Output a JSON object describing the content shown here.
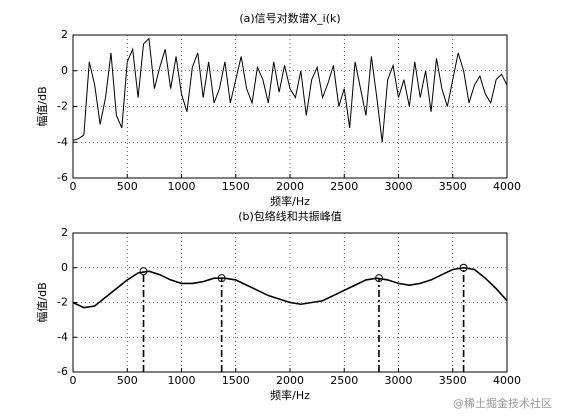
{
  "chart_data": [
    {
      "type": "line",
      "title": "(a)信号对数谱X_i(k)",
      "xlabel": "频率/Hz",
      "ylabel": "幅值/dB",
      "color": "#000000",
      "grid": true,
      "xlim": [
        0,
        4000
      ],
      "ylim": [
        -6,
        2
      ],
      "xticks": [
        0,
        500,
        1000,
        1500,
        2000,
        2500,
        3000,
        3500,
        4000
      ],
      "yticks": [
        -6,
        -4,
        -2,
        0,
        2
      ],
      "x": [
        0,
        50,
        100,
        150,
        200,
        250,
        300,
        350,
        400,
        450,
        500,
        550,
        600,
        650,
        700,
        750,
        800,
        850,
        900,
        950,
        1000,
        1050,
        1100,
        1150,
        1200,
        1250,
        1300,
        1350,
        1400,
        1450,
        1500,
        1550,
        1600,
        1650,
        1700,
        1750,
        1800,
        1850,
        1900,
        1950,
        2000,
        2050,
        2100,
        2150,
        2200,
        2250,
        2300,
        2350,
        2400,
        2450,
        2500,
        2550,
        2600,
        2650,
        2700,
        2750,
        2800,
        2850,
        2900,
        2950,
        3000,
        3050,
        3100,
        3150,
        3200,
        3250,
        3300,
        3350,
        3400,
        3450,
        3500,
        3550,
        3600,
        3650,
        3700,
        3750,
        3800,
        3850,
        3900,
        3950,
        4000
      ],
      "values": [
        -3.9,
        -3.8,
        -3.6,
        0.5,
        -0.8,
        -3.0,
        -1.5,
        1.0,
        -2.5,
        -3.2,
        0.5,
        1.2,
        -1.5,
        1.5,
        1.8,
        -1.0,
        0.2,
        1.2,
        -1.0,
        0.8,
        -1.3,
        -2.3,
        0.2,
        1.0,
        -1.5,
        0.5,
        -1.8,
        -1.0,
        0.5,
        -1.8,
        -0.5,
        0.8,
        -1.0,
        -1.8,
        0.2,
        -0.5,
        -1.8,
        0.5,
        -1.2,
        0.3,
        -1.0,
        -1.5,
        0.0,
        -2.5,
        -0.5,
        0.2,
        -1.5,
        -0.7,
        0.3,
        -2.0,
        -1.0,
        -3.2,
        0.5,
        -1.0,
        -2.5,
        0.8,
        -1.5,
        -4.0,
        -0.5,
        0.3,
        -1.5,
        -0.5,
        -2.0,
        0.5,
        -1.5,
        0.0,
        -2.3,
        0.7,
        -1.0,
        -2.0,
        -0.5,
        1.0,
        0.0,
        -1.8,
        -0.8,
        -0.3,
        -1.3,
        -1.8,
        -0.5,
        -0.2,
        -0.8
      ]
    },
    {
      "type": "line",
      "title": "(b)包络线和共振峰值",
      "xlabel": "频率/Hz",
      "ylabel": "幅值/dB",
      "color": "#000000",
      "grid": true,
      "xlim": [
        0,
        4000
      ],
      "ylim": [
        -6,
        2
      ],
      "xticks": [
        0,
        500,
        1000,
        1500,
        2000,
        2500,
        3000,
        3500,
        4000
      ],
      "yticks": [
        -6,
        -4,
        -2,
        0,
        2
      ],
      "x": [
        0,
        100,
        200,
        300,
        400,
        500,
        600,
        700,
        800,
        900,
        1000,
        1100,
        1200,
        1300,
        1400,
        1500,
        1600,
        1700,
        1800,
        1900,
        2000,
        2100,
        2200,
        2300,
        2400,
        2500,
        2600,
        2700,
        2800,
        2900,
        3000,
        3100,
        3200,
        3300,
        3400,
        3500,
        3600,
        3700,
        3800,
        3900,
        4000
      ],
      "values": [
        -2.0,
        -2.3,
        -2.2,
        -1.7,
        -1.2,
        -0.7,
        -0.3,
        -0.2,
        -0.4,
        -0.7,
        -0.9,
        -0.9,
        -0.8,
        -0.6,
        -0.6,
        -0.7,
        -1.0,
        -1.3,
        -1.6,
        -1.8,
        -2.0,
        -2.1,
        -2.0,
        -1.9,
        -1.6,
        -1.3,
        -1.0,
        -0.7,
        -0.6,
        -0.7,
        -0.9,
        -1.0,
        -0.9,
        -0.7,
        -0.4,
        -0.1,
        0.0,
        -0.1,
        -0.6,
        -1.2,
        -1.9
      ],
      "peaks": {
        "x": [
          650,
          1370,
          2820,
          3600
        ],
        "values": [
          -0.2,
          -0.6,
          -0.6,
          0.0
        ]
      }
    }
  ],
  "watermark": "@稀土掘金技术社区"
}
